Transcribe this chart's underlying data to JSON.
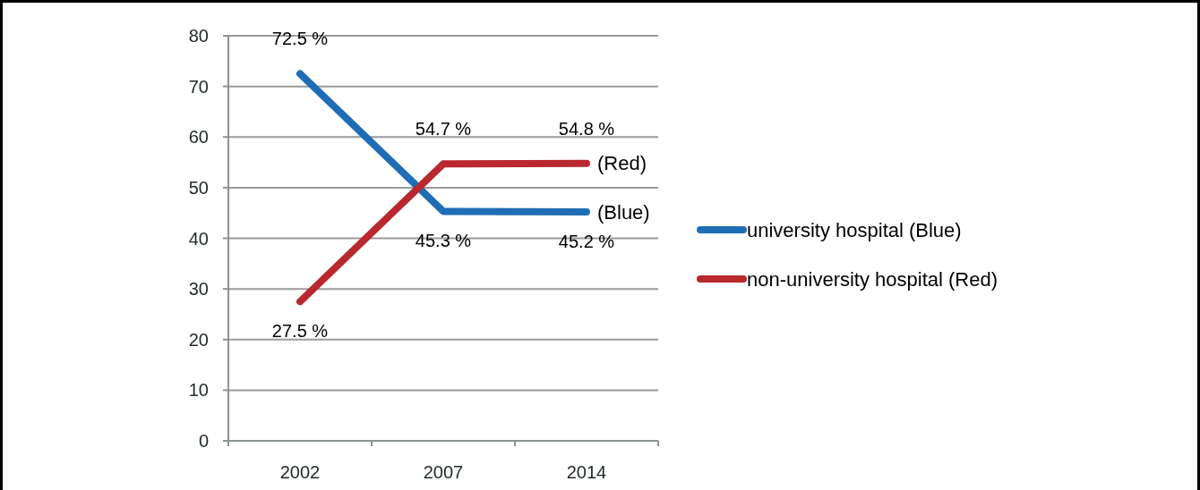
{
  "chart_data": {
    "type": "line",
    "categories": [
      "2002",
      "2007",
      "2014"
    ],
    "series": [
      {
        "name": "university hospital (Blue)",
        "color": "#1f6db5",
        "values": [
          72.5,
          45.3,
          45.2
        ],
        "value_labels": [
          "72.5 %",
          "45.3 %",
          "45.2 %"
        ]
      },
      {
        "name": "non-university hospital (Red)",
        "color": "#b8282e",
        "values": [
          27.5,
          54.7,
          54.8
        ],
        "value_labels": [
          "27.5 %",
          "54.7 %",
          "54.8 %"
        ]
      }
    ],
    "ylim": [
      0,
      80
    ],
    "yticks": [
      0,
      10,
      20,
      30,
      40,
      50,
      60,
      70,
      80
    ],
    "grid": "y",
    "legend": "right",
    "marker": "none",
    "line_style": "solid",
    "annotations": [
      {
        "text": "(Red)",
        "x": "2014",
        "y": 54.8
      },
      {
        "text": "(Blue)",
        "x": "2014",
        "y": 45.2
      }
    ]
  }
}
